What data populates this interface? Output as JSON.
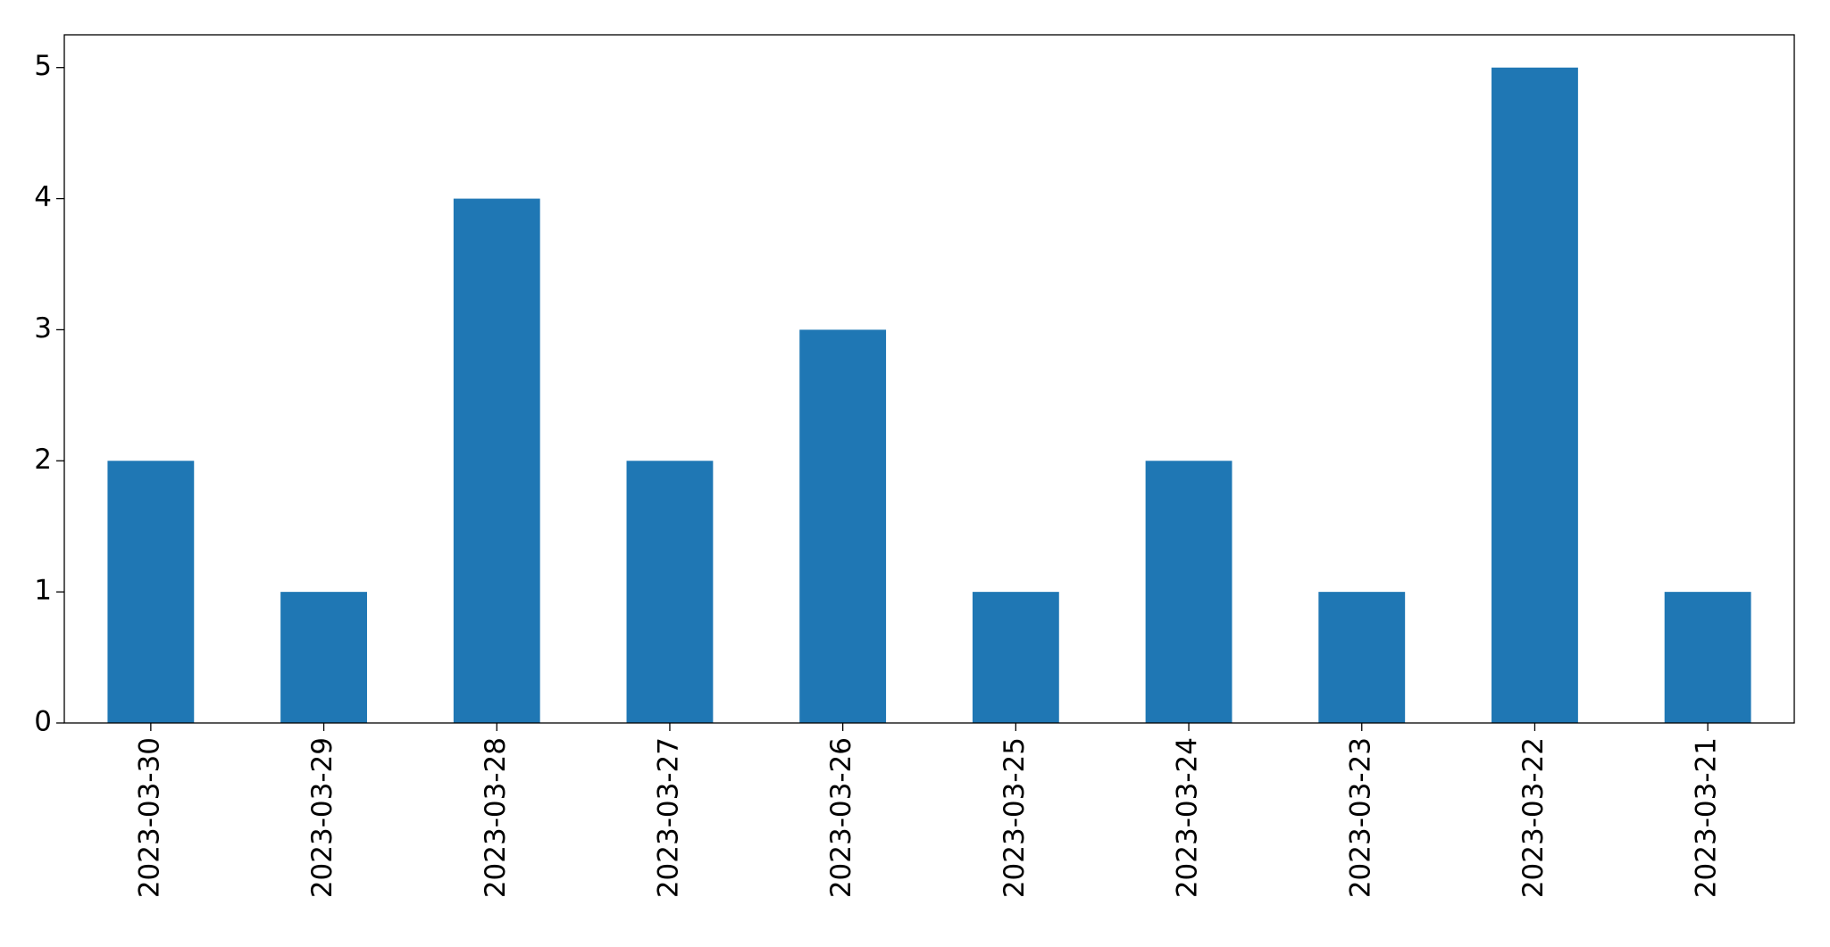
{
  "chart_data": {
    "type": "bar",
    "categories": [
      "2023-03-30",
      "2023-03-29",
      "2023-03-28",
      "2023-03-27",
      "2023-03-26",
      "2023-03-25",
      "2023-03-24",
      "2023-03-23",
      "2023-03-22",
      "2023-03-21"
    ],
    "values": [
      2,
      1,
      4,
      2,
      3,
      1,
      2,
      1,
      5,
      1
    ],
    "color": "#1f77b4",
    "ylim": [
      0,
      5.25
    ],
    "yticks": [
      0,
      1,
      2,
      3,
      4,
      5
    ],
    "grid": false
  }
}
